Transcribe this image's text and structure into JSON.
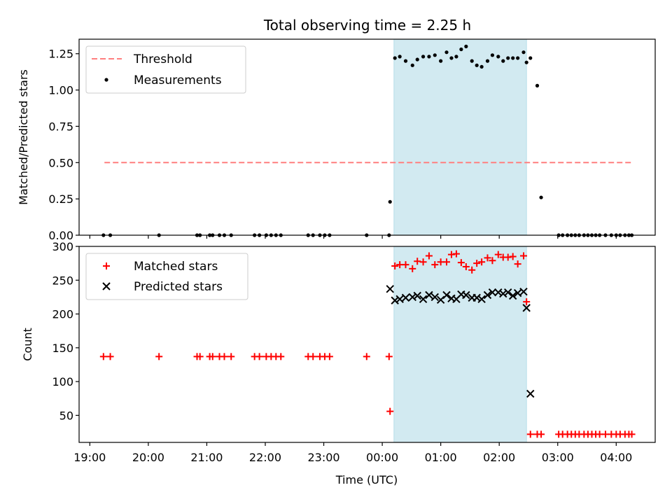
{
  "figure": {
    "title": "Total observing time = 2.25 h",
    "xlabel": "Time (UTC)",
    "x_ticks": [
      "19:00",
      "20:00",
      "21:00",
      "22:00",
      "23:00",
      "00:00",
      "01:00",
      "02:00",
      "03:00",
      "04:00"
    ]
  },
  "chart_data": [
    {
      "type": "scatter",
      "panel": "top",
      "ylabel": "Matched/Predicted stars",
      "ylim": [
        0,
        1.35
      ],
      "y_ticks": [
        "0.00",
        "0.25",
        "0.50",
        "0.75",
        "1.00",
        "1.25"
      ],
      "y_tick_values": [
        0,
        0.25,
        0.5,
        0.75,
        1.0,
        1.25
      ],
      "xlim": [
        "18:49",
        "04:40"
      ],
      "shaded_region": {
        "start": "00:12",
        "end": "02:28",
        "color": "#add8e6"
      },
      "legend": {
        "placement": "top-left"
      },
      "series": [
        {
          "name": "Threshold",
          "style": "dashed-line",
          "color": "#ff7f7f",
          "x": [
            "19:15",
            "04:15"
          ],
          "y": [
            0.5,
            0.5
          ]
        },
        {
          "name": "Measurements",
          "style": "dot",
          "color": "#000000",
          "x": [
            "19:14",
            "19:21",
            "20:11",
            "20:50",
            "20:53",
            "21:03",
            "21:06",
            "21:13",
            "21:18",
            "21:25",
            "21:49",
            "21:54",
            "22:01",
            "22:06",
            "22:11",
            "22:16",
            "22:44",
            "22:49",
            "22:56",
            "23:01",
            "23:06",
            "23:44",
            "00:07",
            "00:08",
            "00:13",
            "00:18",
            "00:24",
            "00:31",
            "00:36",
            "00:42",
            "00:48",
            "00:54",
            "01:00",
            "01:06",
            "01:11",
            "01:16",
            "01:21",
            "01:26",
            "01:32",
            "01:37",
            "01:42",
            "01:48",
            "01:53",
            "01:59",
            "02:04",
            "02:09",
            "02:14",
            "02:19",
            "02:25",
            "02:28",
            "02:32",
            "02:39",
            "02:43",
            "03:01",
            "03:05",
            "03:10",
            "03:14",
            "03:18",
            "03:22",
            "03:27",
            "03:31",
            "03:35",
            "03:39",
            "03:43",
            "03:49",
            "03:55",
            "04:00",
            "04:04",
            "04:09",
            "04:13",
            "04:16"
          ],
          "y": [
            0,
            0,
            0,
            0,
            0,
            0,
            0,
            0,
            0,
            0,
            0,
            0,
            0,
            0,
            0,
            0,
            0,
            0,
            0,
            0,
            0,
            0,
            0,
            0.23,
            1.22,
            1.23,
            1.2,
            1.17,
            1.21,
            1.23,
            1.23,
            1.24,
            1.2,
            1.26,
            1.22,
            1.23,
            1.28,
            1.3,
            1.2,
            1.17,
            1.16,
            1.2,
            1.24,
            1.23,
            1.2,
            1.22,
            1.22,
            1.22,
            1.26,
            1.19,
            1.22,
            1.03,
            0.26,
            0,
            0,
            0,
            0,
            0,
            0,
            0,
            0,
            0,
            0,
            0,
            0,
            0,
            0,
            0,
            0,
            0,
            0
          ]
        }
      ]
    },
    {
      "type": "scatter",
      "panel": "bottom",
      "ylabel": "Count",
      "ylim": [
        10,
        300
      ],
      "y_ticks": [
        "50",
        "100",
        "150",
        "200",
        "250",
        "300"
      ],
      "y_tick_values": [
        50,
        100,
        150,
        200,
        250,
        300
      ],
      "xlim": [
        "18:49",
        "04:40"
      ],
      "shaded_region": {
        "start": "00:12",
        "end": "02:28",
        "color": "#add8e6"
      },
      "legend": {
        "placement": "top-left"
      },
      "series": [
        {
          "name": "Matched stars",
          "style": "plus",
          "color": "#ff0000",
          "x": [
            "19:14",
            "19:21",
            "20:11",
            "20:50",
            "20:53",
            "21:03",
            "21:06",
            "21:13",
            "21:18",
            "21:25",
            "21:49",
            "21:54",
            "22:01",
            "22:06",
            "22:11",
            "22:16",
            "22:44",
            "22:49",
            "22:56",
            "23:01",
            "23:06",
            "23:44",
            "00:07",
            "00:08",
            "00:13",
            "00:18",
            "00:24",
            "00:31",
            "00:36",
            "00:42",
            "00:48",
            "00:54",
            "01:00",
            "01:06",
            "01:11",
            "01:16",
            "01:21",
            "01:26",
            "01:32",
            "01:37",
            "01:42",
            "01:48",
            "01:53",
            "01:59",
            "02:04",
            "02:09",
            "02:14",
            "02:19",
            "02:25",
            "02:28",
            "02:32",
            "02:39",
            "02:43",
            "03:01",
            "03:05",
            "03:10",
            "03:14",
            "03:18",
            "03:22",
            "03:27",
            "03:31",
            "03:35",
            "03:39",
            "03:43",
            "03:49",
            "03:55",
            "04:00",
            "04:04",
            "04:09",
            "04:13",
            "04:16"
          ],
          "y": [
            137,
            137,
            137,
            137,
            137,
            137,
            137,
            137,
            137,
            137,
            137,
            137,
            137,
            137,
            137,
            137,
            137,
            137,
            137,
            137,
            137,
            137,
            137,
            56,
            271,
            273,
            273,
            267,
            278,
            277,
            286,
            273,
            277,
            277,
            288,
            289,
            276,
            270,
            265,
            275,
            277,
            283,
            279,
            288,
            284,
            284,
            285,
            274,
            286,
            218,
            22,
            22,
            22,
            22,
            22,
            22,
            22,
            22,
            22,
            22,
            22,
            22,
            22,
            22,
            22,
            22,
            22,
            22,
            22,
            22,
            22
          ]
        },
        {
          "name": "Predicted stars",
          "style": "x",
          "color": "#000000",
          "x": [
            "00:08",
            "00:13",
            "00:18",
            "00:24",
            "00:31",
            "00:36",
            "00:42",
            "00:48",
            "00:54",
            "01:00",
            "01:06",
            "01:11",
            "01:16",
            "01:21",
            "01:26",
            "01:32",
            "01:37",
            "01:42",
            "01:48",
            "01:53",
            "01:59",
            "02:04",
            "02:09",
            "02:14",
            "02:19",
            "02:25",
            "02:28",
            "02:32"
          ],
          "y": [
            237,
            220,
            222,
            224,
            225,
            227,
            222,
            228,
            225,
            221,
            228,
            223,
            222,
            229,
            228,
            224,
            224,
            222,
            228,
            232,
            232,
            230,
            232,
            227,
            231,
            233,
            209,
            82
          ]
        }
      ]
    }
  ]
}
